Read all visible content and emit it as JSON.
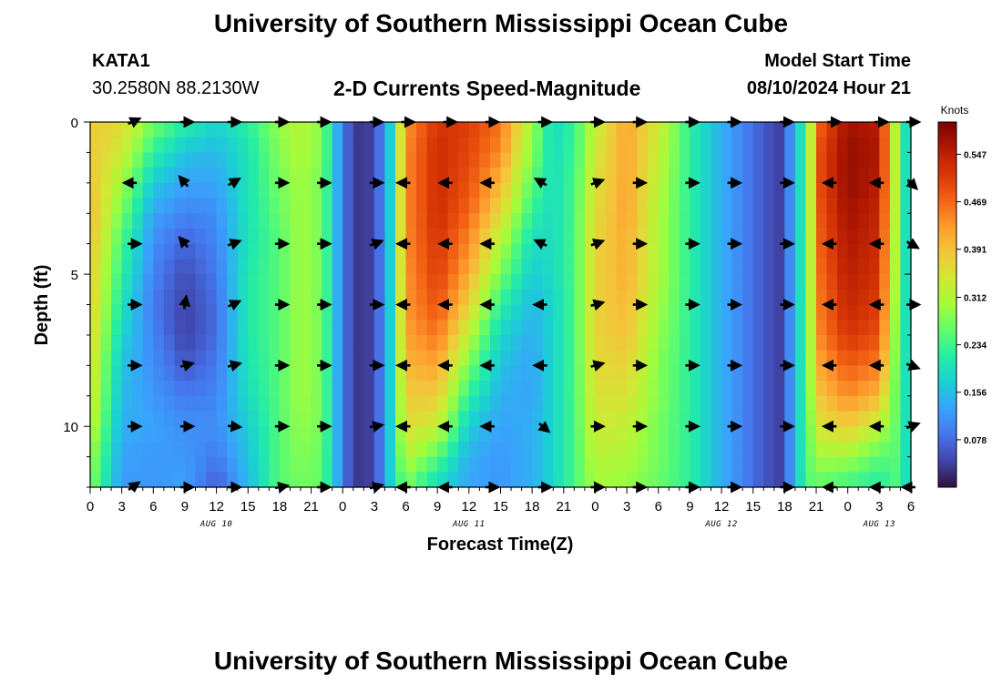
{
  "header": {
    "title": "University of Southern Mississippi Ocean Cube",
    "station": "KATA1",
    "coords": "30.2580N  88.2130W",
    "plot_title": "2-D Currents Speed-Magnitude",
    "model_label": "Model Start Time",
    "model_time": "08/10/2024 Hour 21"
  },
  "footer": {
    "title": "University of Southern Mississippi Ocean Cube"
  },
  "chart_data": {
    "type": "heatmap",
    "title": "2-D Currents Speed-Magnitude",
    "xlabel": "Forecast Time(Z)",
    "ylabel": "Depth (ft)",
    "x_start_hour": 0,
    "x_end_hour": 78,
    "x_ticks": [
      {
        "h": 0,
        "label": "0"
      },
      {
        "h": 3,
        "label": "3"
      },
      {
        "h": 6,
        "label": "6"
      },
      {
        "h": 9,
        "label": "9"
      },
      {
        "h": 12,
        "label": "12"
      },
      {
        "h": 15,
        "label": "15"
      },
      {
        "h": 18,
        "label": "18"
      },
      {
        "h": 21,
        "label": "21"
      },
      {
        "h": 24,
        "label": "0"
      },
      {
        "h": 27,
        "label": "3"
      },
      {
        "h": 30,
        "label": "6"
      },
      {
        "h": 33,
        "label": "9"
      },
      {
        "h": 36,
        "label": "12"
      },
      {
        "h": 39,
        "label": "15"
      },
      {
        "h": 42,
        "label": "18"
      },
      {
        "h": 45,
        "label": "21"
      },
      {
        "h": 48,
        "label": "0"
      },
      {
        "h": 51,
        "label": "3"
      },
      {
        "h": 54,
        "label": "6"
      },
      {
        "h": 57,
        "label": "9"
      },
      {
        "h": 60,
        "label": "12"
      },
      {
        "h": 63,
        "label": "15"
      },
      {
        "h": 66,
        "label": "18"
      },
      {
        "h": 69,
        "label": "21"
      },
      {
        "h": 72,
        "label": "0"
      },
      {
        "h": 75,
        "label": "3"
      },
      {
        "h": 78,
        "label": "6"
      }
    ],
    "date_labels": [
      {
        "h": 12,
        "label": "AUG 10"
      },
      {
        "h": 36,
        "label": "AUG 11"
      },
      {
        "h": 60,
        "label": "AUG 12"
      },
      {
        "h": 75,
        "label": "AUG 13"
      }
    ],
    "ylim": [
      0,
      12
    ],
    "y_ticks": [
      0,
      5,
      10
    ],
    "colorbar": {
      "label": "Knots",
      "min": 0.0,
      "max": 0.6,
      "ticks": [
        0.078,
        0.156,
        0.234,
        0.312,
        0.391,
        0.469,
        0.547
      ]
    },
    "colormap": [
      "#30123b",
      "#4145ab",
      "#4675ed",
      "#39a2fc",
      "#1bcfd4",
      "#24eca6",
      "#61fc6c",
      "#a4fc3b",
      "#d1e834",
      "#f3c63a",
      "#fe9b2d",
      "#f36315",
      "#d93806",
      "#b11901",
      "#7a0403"
    ],
    "depth_levels": [
      0,
      1,
      2,
      3,
      4,
      5,
      6,
      7,
      8,
      9,
      10,
      11,
      12
    ],
    "speed_profile": [
      {
        "h": 0,
        "s": [
          0.38,
          0.38,
          0.39,
          0.4,
          0.39,
          0.38,
          0.38,
          0.37,
          0.36,
          0.35,
          0.33,
          0.3,
          0.28
        ]
      },
      {
        "h": 3,
        "s": [
          0.36,
          0.34,
          0.3,
          0.27,
          0.24,
          0.22,
          0.2,
          0.18,
          0.16,
          0.15,
          0.14,
          0.13,
          0.12
        ]
      },
      {
        "h": 6,
        "s": [
          0.27,
          0.22,
          0.17,
          0.13,
          0.11,
          0.1,
          0.09,
          0.1,
          0.11,
          0.12,
          0.13,
          0.12,
          0.12
        ]
      },
      {
        "h": 9,
        "s": [
          0.22,
          0.16,
          0.13,
          0.1,
          0.07,
          0.05,
          0.04,
          0.04,
          0.06,
          0.09,
          0.11,
          0.12,
          0.13
        ]
      },
      {
        "h": 12,
        "s": [
          0.18,
          0.15,
          0.13,
          0.11,
          0.1,
          0.09,
          0.08,
          0.08,
          0.09,
          0.1,
          0.11,
          0.09,
          0.06
        ]
      },
      {
        "h": 15,
        "s": [
          0.22,
          0.2,
          0.2,
          0.2,
          0.2,
          0.21,
          0.21,
          0.21,
          0.2,
          0.19,
          0.17,
          0.16,
          0.15
        ]
      },
      {
        "h": 18,
        "s": [
          0.29,
          0.28,
          0.27,
          0.26,
          0.25,
          0.25,
          0.25,
          0.25,
          0.25,
          0.25,
          0.25,
          0.25,
          0.25
        ]
      },
      {
        "h": 20,
        "s": [
          0.32,
          0.31,
          0.3,
          0.3,
          0.3,
          0.3,
          0.3,
          0.3,
          0.3,
          0.3,
          0.29,
          0.28,
          0.27
        ]
      },
      {
        "h": 22,
        "s": [
          0.28,
          0.28,
          0.27,
          0.27,
          0.27,
          0.27,
          0.27,
          0.27,
          0.27,
          0.27,
          0.27,
          0.26,
          0.26
        ]
      },
      {
        "h": 23.5,
        "s": [
          0.14,
          0.14,
          0.14,
          0.14,
          0.14,
          0.14,
          0.14,
          0.14,
          0.14,
          0.14,
          0.14,
          0.14,
          0.14
        ]
      },
      {
        "h": 25,
        "s": [
          0.03,
          0.03,
          0.03,
          0.03,
          0.03,
          0.03,
          0.03,
          0.03,
          0.03,
          0.03,
          0.03,
          0.03,
          0.03
        ]
      },
      {
        "h": 27,
        "s": [
          0.04,
          0.04,
          0.04,
          0.04,
          0.04,
          0.04,
          0.04,
          0.04,
          0.04,
          0.04,
          0.04,
          0.04,
          0.04
        ]
      },
      {
        "h": 28.5,
        "s": [
          0.17,
          0.17,
          0.17,
          0.17,
          0.17,
          0.17,
          0.17,
          0.17,
          0.17,
          0.17,
          0.17,
          0.17,
          0.17
        ]
      },
      {
        "h": 30,
        "s": [
          0.43,
          0.44,
          0.44,
          0.44,
          0.44,
          0.43,
          0.43,
          0.42,
          0.4,
          0.38,
          0.36,
          0.32,
          0.27
        ]
      },
      {
        "h": 33,
        "s": [
          0.52,
          0.53,
          0.53,
          0.53,
          0.52,
          0.51,
          0.49,
          0.46,
          0.42,
          0.38,
          0.33,
          0.25,
          0.18
        ]
      },
      {
        "h": 36,
        "s": [
          0.51,
          0.5,
          0.49,
          0.47,
          0.44,
          0.41,
          0.37,
          0.32,
          0.27,
          0.22,
          0.17,
          0.14,
          0.13
        ]
      },
      {
        "h": 39,
        "s": [
          0.46,
          0.44,
          0.4,
          0.36,
          0.31,
          0.27,
          0.22,
          0.18,
          0.16,
          0.14,
          0.13,
          0.12,
          0.12
        ]
      },
      {
        "h": 42,
        "s": [
          0.3,
          0.28,
          0.25,
          0.22,
          0.19,
          0.17,
          0.15,
          0.14,
          0.13,
          0.13,
          0.14,
          0.14,
          0.14
        ]
      },
      {
        "h": 44,
        "s": [
          0.18,
          0.19,
          0.19,
          0.19,
          0.19,
          0.19,
          0.18,
          0.18,
          0.18,
          0.18,
          0.18,
          0.18,
          0.18
        ]
      },
      {
        "h": 46,
        "s": [
          0.23,
          0.23,
          0.24,
          0.24,
          0.24,
          0.24,
          0.24,
          0.24,
          0.24,
          0.24,
          0.24,
          0.24,
          0.24
        ]
      },
      {
        "h": 48,
        "s": [
          0.33,
          0.34,
          0.35,
          0.36,
          0.37,
          0.37,
          0.37,
          0.37,
          0.36,
          0.35,
          0.34,
          0.32,
          0.3
        ]
      },
      {
        "h": 51,
        "s": [
          0.42,
          0.42,
          0.42,
          0.42,
          0.41,
          0.41,
          0.4,
          0.39,
          0.37,
          0.35,
          0.33,
          0.31,
          0.29
        ]
      },
      {
        "h": 54,
        "s": [
          0.34,
          0.33,
          0.32,
          0.31,
          0.31,
          0.31,
          0.3,
          0.29,
          0.28,
          0.28,
          0.27,
          0.27,
          0.26
        ]
      },
      {
        "h": 57,
        "s": [
          0.22,
          0.22,
          0.22,
          0.22,
          0.22,
          0.22,
          0.22,
          0.22,
          0.22,
          0.22,
          0.22,
          0.22,
          0.22
        ]
      },
      {
        "h": 60,
        "s": [
          0.14,
          0.14,
          0.14,
          0.14,
          0.14,
          0.14,
          0.14,
          0.14,
          0.14,
          0.14,
          0.14,
          0.14,
          0.14
        ]
      },
      {
        "h": 62,
        "s": [
          0.1,
          0.1,
          0.1,
          0.1,
          0.1,
          0.1,
          0.1,
          0.1,
          0.1,
          0.1,
          0.1,
          0.1,
          0.1
        ]
      },
      {
        "h": 64,
        "s": [
          0.06,
          0.06,
          0.06,
          0.06,
          0.06,
          0.06,
          0.06,
          0.06,
          0.06,
          0.06,
          0.06,
          0.06,
          0.06
        ]
      },
      {
        "h": 65.5,
        "s": [
          0.04,
          0.04,
          0.04,
          0.04,
          0.04,
          0.04,
          0.04,
          0.04,
          0.04,
          0.04,
          0.04,
          0.04,
          0.04
        ]
      },
      {
        "h": 67,
        "s": [
          0.14,
          0.14,
          0.14,
          0.14,
          0.14,
          0.14,
          0.14,
          0.14,
          0.14,
          0.14,
          0.14,
          0.14,
          0.14
        ]
      },
      {
        "h": 68,
        "s": [
          0.25,
          0.25,
          0.25,
          0.25,
          0.25,
          0.25,
          0.25,
          0.25,
          0.25,
          0.25,
          0.25,
          0.25,
          0.25
        ]
      },
      {
        "h": 69.5,
        "s": [
          0.48,
          0.5,
          0.5,
          0.49,
          0.48,
          0.47,
          0.46,
          0.45,
          0.42,
          0.39,
          0.35,
          0.3,
          0.25
        ]
      },
      {
        "h": 72,
        "s": [
          0.57,
          0.58,
          0.58,
          0.57,
          0.56,
          0.55,
          0.54,
          0.52,
          0.48,
          0.44,
          0.38,
          0.3,
          0.23
        ]
      },
      {
        "h": 75,
        "s": [
          0.55,
          0.56,
          0.55,
          0.54,
          0.53,
          0.52,
          0.51,
          0.49,
          0.45,
          0.4,
          0.32,
          0.25,
          0.21
        ]
      },
      {
        "h": 76.5,
        "s": [
          0.32,
          0.32,
          0.32,
          0.32,
          0.31,
          0.31,
          0.3,
          0.29,
          0.28,
          0.27,
          0.26,
          0.25,
          0.24
        ]
      },
      {
        "h": 77.3,
        "s": [
          0.22,
          0.22,
          0.22,
          0.22,
          0.22,
          0.22,
          0.22,
          0.22,
          0.22,
          0.22,
          0.22,
          0.22,
          0.22
        ]
      },
      {
        "h": 78,
        "s": [
          0.14,
          0.14,
          0.14,
          0.14,
          0.14,
          0.14,
          0.14,
          0.14,
          0.14,
          0.14,
          0.14,
          0.14,
          0.14
        ]
      }
    ],
    "vector_hours": [
      4,
      9,
      13.5,
      18,
      22,
      27,
      30,
      34,
      38,
      43,
      48,
      52,
      57,
      61,
      66,
      70.5,
      75,
      78
    ],
    "vector_depths": [
      0,
      2,
      4,
      6,
      8,
      10,
      12
    ],
    "vector_directions_deg": [
      [
        -25,
        0,
        0,
        0,
        0,
        0,
        0,
        0,
        0,
        0,
        0,
        0,
        0,
        0,
        0,
        0,
        0,
        0
      ],
      [
        180,
        -130,
        -30,
        0,
        0,
        0,
        180,
        180,
        180,
        -150,
        -20,
        0,
        0,
        0,
        0,
        180,
        180,
        45
      ],
      [
        0,
        -130,
        -20,
        0,
        0,
        -20,
        180,
        180,
        180,
        -155,
        -20,
        0,
        0,
        0,
        0,
        180,
        180,
        30
      ],
      [
        0,
        -80,
        -25,
        0,
        0,
        0,
        180,
        180,
        180,
        180,
        -15,
        0,
        0,
        0,
        0,
        180,
        180,
        0
      ],
      [
        0,
        -15,
        -15,
        0,
        0,
        0,
        180,
        180,
        180,
        180,
        -15,
        0,
        0,
        0,
        0,
        180,
        180,
        20
      ],
      [
        0,
        0,
        5,
        0,
        0,
        -10,
        180,
        180,
        180,
        40,
        0,
        0,
        0,
        0,
        0,
        180,
        180,
        -20
      ],
      [
        -35,
        0,
        0,
        -10,
        0,
        -15,
        180,
        180,
        0,
        0,
        0,
        0,
        0,
        0,
        0,
        180,
        180,
        180
      ]
    ]
  }
}
